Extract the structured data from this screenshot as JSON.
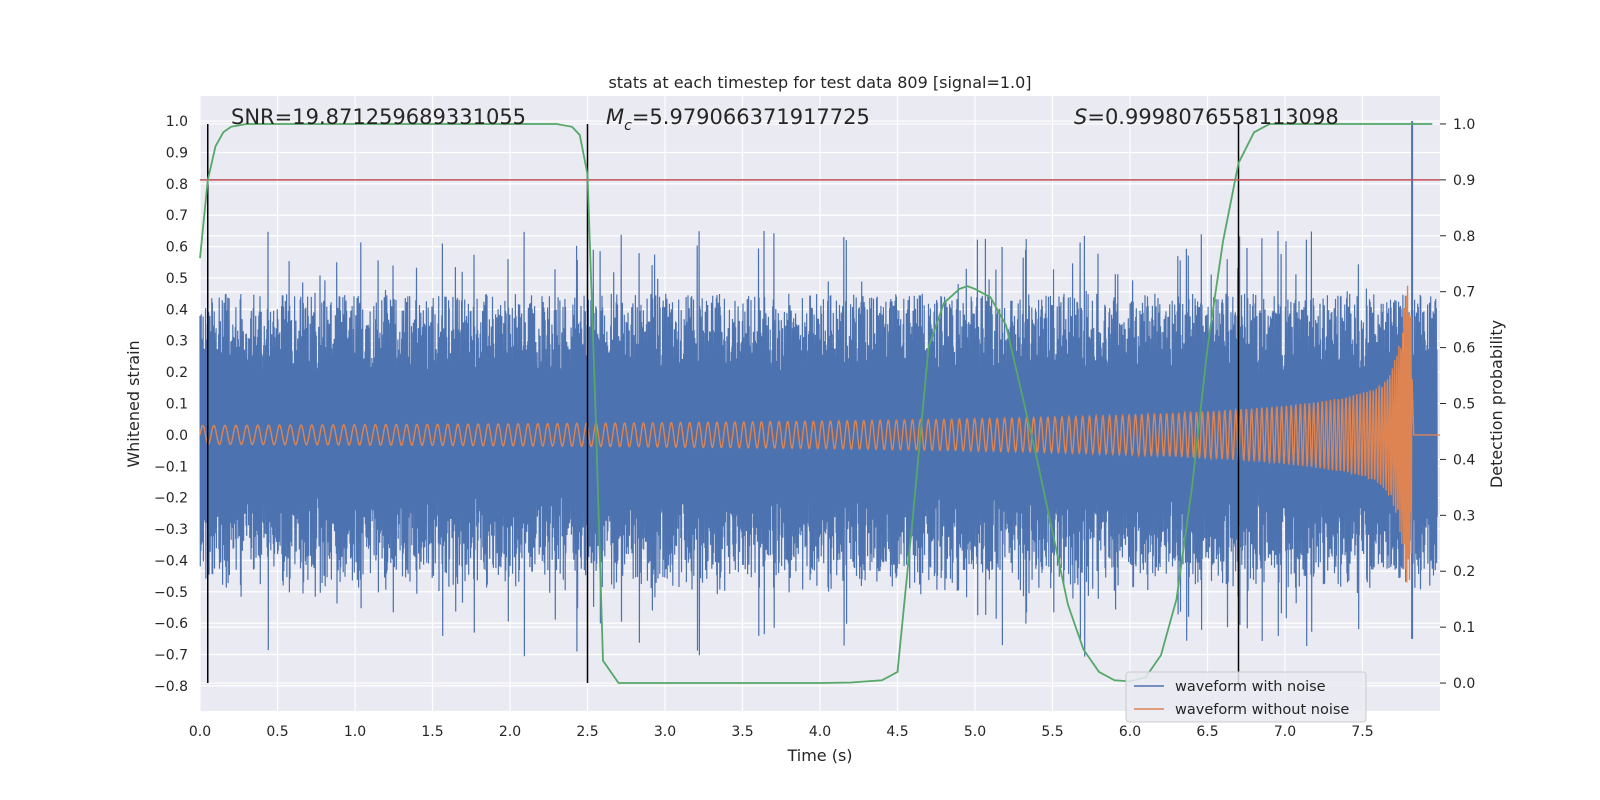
{
  "chart_data": {
    "type": "line",
    "title": "stats at each timestep for test data 809 [signal=1.0]",
    "xlabel": "Time (s)",
    "ylabel": "Whitened strain",
    "y2label": "Detection probability",
    "xlim": [
      0.0,
      8.0
    ],
    "ylim": [
      -0.88,
      1.08
    ],
    "y2lim": [
      -0.05,
      1.05
    ],
    "xticks": [
      "0.0",
      "0.5",
      "1.0",
      "1.5",
      "2.0",
      "2.5",
      "3.0",
      "3.5",
      "4.0",
      "4.5",
      "5.0",
      "5.5",
      "6.0",
      "6.5",
      "7.0",
      "7.5"
    ],
    "yticks": [
      "1.0",
      "0.9",
      "0.8",
      "0.7",
      "0.6",
      "0.5",
      "0.4",
      "0.3",
      "0.2",
      "0.1",
      "0.0",
      "−0.1",
      "−0.2",
      "−0.3",
      "−0.4",
      "−0.5",
      "−0.6",
      "−0.7",
      "−0.8"
    ],
    "y2ticks": [
      "1.0",
      "0.9",
      "0.8",
      "0.7",
      "0.6",
      "0.5",
      "0.4",
      "0.3",
      "0.2",
      "0.1",
      "0.0"
    ],
    "grid": true,
    "legend_position": "bottom-right",
    "annotations": {
      "snr": "SNR=19.871259689331055",
      "mc_symbol": "M",
      "mc_sub": "c",
      "mc_value": "=5.979066371917725",
      "s_symbol": "S",
      "s_value": "=0.9998076558113098"
    },
    "threshold_line": {
      "y2": 0.9,
      "color": "#c44e52"
    },
    "vertical_lines_x": [
      0.05,
      2.5,
      6.7
    ],
    "series": [
      {
        "name": "waveform with noise",
        "color": "#4c72b0",
        "description_values": {
          "noise_envelope": 0.45,
          "peak_x": 7.82,
          "peak_y": 1.0
        }
      },
      {
        "name": "waveform without noise",
        "color": "#dd8452",
        "description_values": {
          "start_amplitude": 0.03,
          "peak_x": 7.82,
          "peak_amplitude": 0.48,
          "end_x": 7.83
        }
      },
      {
        "name": "detection probability",
        "color": "#55a868",
        "axis": "y2",
        "x": [
          0.0,
          0.05,
          0.1,
          0.15,
          0.2,
          0.3,
          0.4,
          0.6,
          1.0,
          1.5,
          2.0,
          2.3,
          2.4,
          2.45,
          2.5,
          2.55,
          2.6,
          2.7,
          3.0,
          3.5,
          4.0,
          4.2,
          4.4,
          4.5,
          4.6,
          4.7,
          4.8,
          4.9,
          4.95,
          5.0,
          5.1,
          5.2,
          5.3,
          5.4,
          5.5,
          5.6,
          5.7,
          5.8,
          5.9,
          6.0,
          6.1,
          6.2,
          6.3,
          6.4,
          6.5,
          6.6,
          6.7,
          6.8,
          6.9,
          7.0,
          7.2,
          7.5,
          7.8,
          7.95
        ],
        "y": [
          0.76,
          0.9,
          0.96,
          0.985,
          0.995,
          1.0,
          1.0,
          1.0,
          1.0,
          1.0,
          1.0,
          1.0,
          0.995,
          0.98,
          0.91,
          0.5,
          0.04,
          0.0,
          0.0,
          0.0,
          0.0,
          0.001,
          0.005,
          0.02,
          0.3,
          0.6,
          0.68,
          0.705,
          0.71,
          0.705,
          0.69,
          0.64,
          0.52,
          0.4,
          0.27,
          0.14,
          0.06,
          0.02,
          0.005,
          0.003,
          0.01,
          0.05,
          0.15,
          0.35,
          0.6,
          0.79,
          0.93,
          0.985,
          1.0,
          1.0,
          1.0,
          1.0,
          1.0,
          1.0
        ]
      }
    ]
  }
}
